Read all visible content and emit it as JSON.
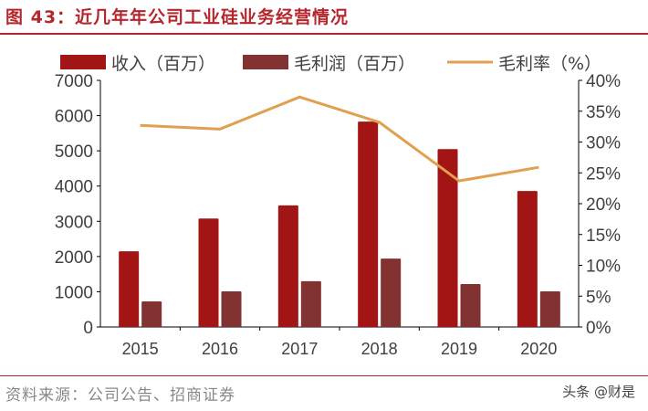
{
  "title": "图 43：近几年年公司工业硅业务经营情况",
  "source": "资料来源：公司公告、招商证券",
  "watermark": "头条 @财是",
  "chart_data": {
    "type": "bar",
    "categories": [
      "2015",
      "2016",
      "2017",
      "2018",
      "2019",
      "2020"
    ],
    "series": [
      {
        "name": "收入（百万）",
        "type": "bar",
        "axis": "left",
        "color": "#a31515",
        "values": [
          2150,
          3080,
          3450,
          5830,
          5050,
          3860
        ]
      },
      {
        "name": "毛利润（百万）",
        "type": "bar",
        "axis": "left",
        "color": "#833232",
        "values": [
          725,
          1010,
          1300,
          1940,
          1220,
          1010
        ]
      },
      {
        "name": "毛利率（%）",
        "type": "line",
        "axis": "right",
        "color": "#e0a050",
        "values": [
          32.7,
          32.1,
          37.3,
          33.2,
          23.7,
          25.9
        ]
      }
    ],
    "ylim": [
      0,
      7000
    ],
    "yticks": [
      "0",
      "1000",
      "2000",
      "3000",
      "4000",
      "5000",
      "6000",
      "7000"
    ],
    "y2lim": [
      0,
      40
    ],
    "y2ticks": [
      "0%",
      "5%",
      "10%",
      "15%",
      "20%",
      "25%",
      "30%",
      "35%",
      "40%"
    ],
    "legend": "top",
    "grid": false
  }
}
